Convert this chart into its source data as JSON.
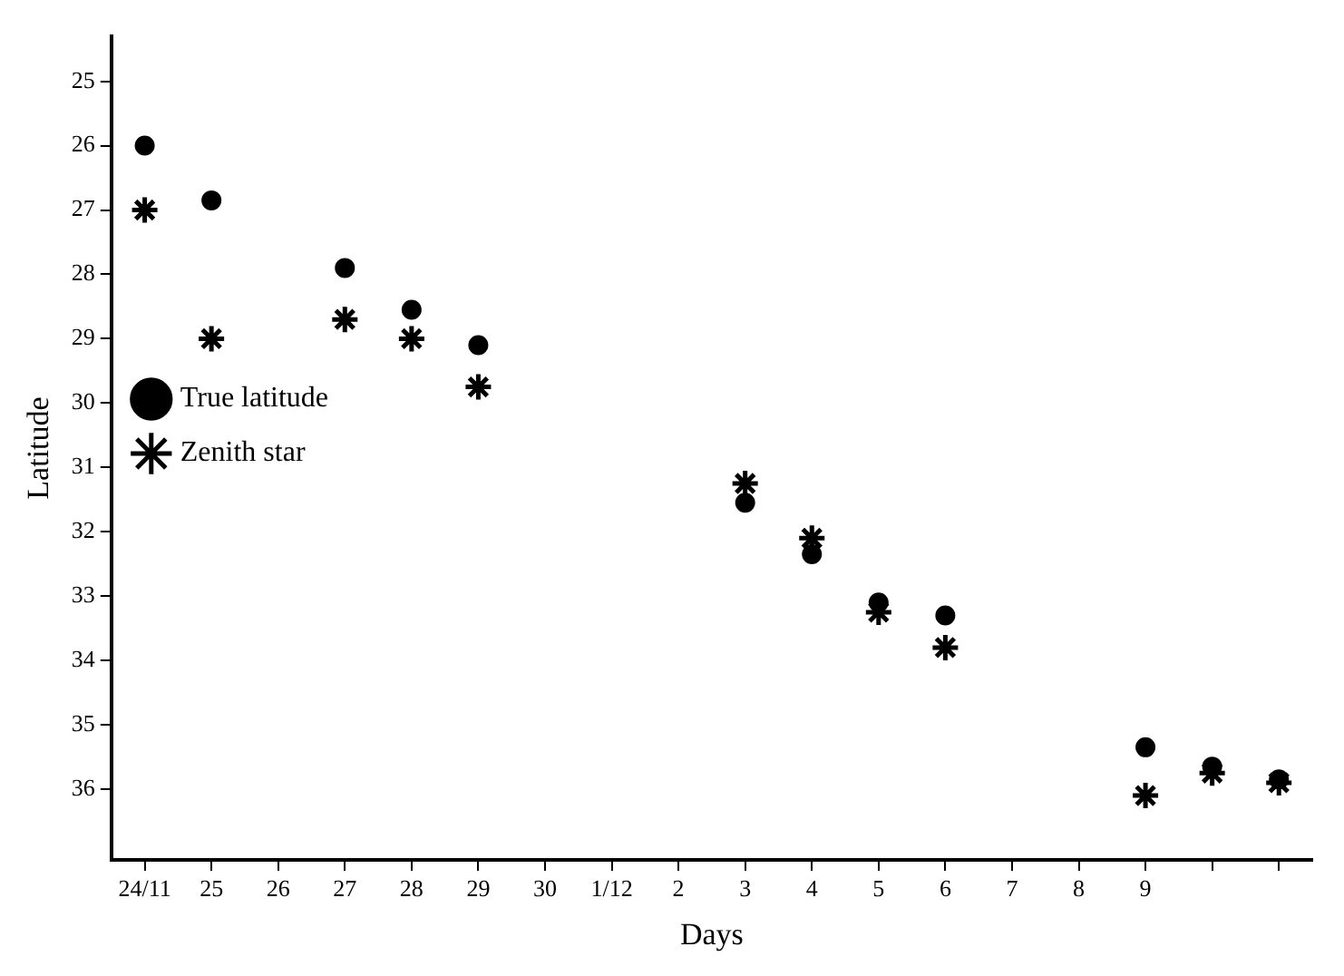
{
  "chart_data": {
    "type": "scatter",
    "xlabel": "Days",
    "ylabel": "Latitude",
    "categories": [
      "24/11",
      "25",
      "26",
      "27",
      "28",
      "29",
      "30",
      "1/12",
      "2",
      "3",
      "4",
      "5",
      "6",
      "7",
      "8",
      "9",
      null,
      null
    ],
    "series": [
      {
        "name": "True latitude",
        "color": "#000000",
        "marker": "circle",
        "values": [
          26.0,
          26.85,
          null,
          27.9,
          28.55,
          29.1,
          null,
          null,
          null,
          31.55,
          32.35,
          33.1,
          33.3,
          null,
          null,
          35.35,
          35.65,
          35.85
        ]
      },
      {
        "name": "Zenith star",
        "color": "#000000",
        "marker": "cross",
        "values": [
          27.0,
          29.0,
          null,
          28.7,
          29.0,
          29.75,
          null,
          null,
          null,
          31.25,
          32.1,
          33.25,
          33.8,
          null,
          null,
          36.1,
          35.75,
          35.9
        ]
      }
    ],
    "ylim": [
      37.1,
      24.3
    ],
    "yticks": [
      25,
      26,
      27,
      28,
      29,
      30,
      31,
      32,
      33,
      34,
      35,
      36
    ],
    "grid": false,
    "legend": "top"
  }
}
